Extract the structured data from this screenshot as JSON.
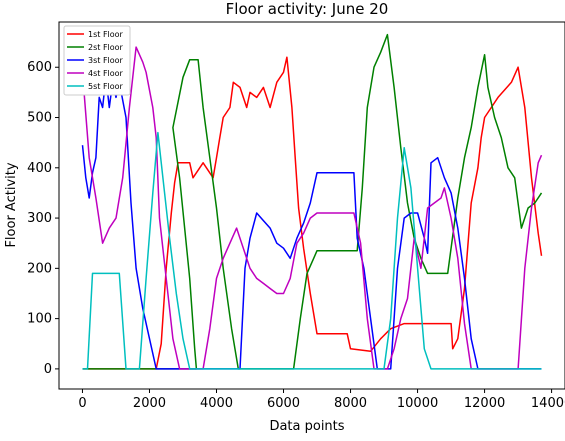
{
  "chart_data": {
    "type": "line",
    "title": "Floor activity: June 20",
    "xlabel": "Data points",
    "ylabel": "Floor Activity",
    "xlim": [
      -700,
      14400
    ],
    "ylim": [
      -40,
      690
    ],
    "xticks": [
      0,
      2000,
      4000,
      6000,
      8000,
      10000,
      12000,
      14000
    ],
    "yticks": [
      0,
      100,
      200,
      300,
      400,
      500,
      600
    ],
    "grid": false,
    "legend_position": "top-left",
    "series": [
      {
        "name": "1st Floor",
        "color": "#ff0000",
        "points": [
          [
            0,
            0
          ],
          [
            2200,
            0
          ],
          [
            2350,
            50
          ],
          [
            2500,
            200
          ],
          [
            2650,
            310
          ],
          [
            2750,
            370
          ],
          [
            2850,
            410
          ],
          [
            3200,
            410
          ],
          [
            3300,
            380
          ],
          [
            3600,
            410
          ],
          [
            3900,
            380
          ],
          [
            4000,
            420
          ],
          [
            4100,
            460
          ],
          [
            4200,
            500
          ],
          [
            4400,
            520
          ],
          [
            4500,
            570
          ],
          [
            4700,
            560
          ],
          [
            4900,
            520
          ],
          [
            5000,
            550
          ],
          [
            5200,
            540
          ],
          [
            5400,
            560
          ],
          [
            5600,
            520
          ],
          [
            5800,
            570
          ],
          [
            6000,
            590
          ],
          [
            6100,
            620
          ],
          [
            6250,
            520
          ],
          [
            6350,
            420
          ],
          [
            6450,
            320
          ],
          [
            6600,
            240
          ],
          [
            6800,
            150
          ],
          [
            7000,
            70
          ],
          [
            7900,
            70
          ],
          [
            8000,
            40
          ],
          [
            8600,
            35
          ],
          [
            8900,
            60
          ],
          [
            9200,
            80
          ],
          [
            9600,
            90
          ],
          [
            10000,
            90
          ],
          [
            10400,
            90
          ],
          [
            11000,
            90
          ],
          [
            11050,
            40
          ],
          [
            11200,
            60
          ],
          [
            11400,
            160
          ],
          [
            11600,
            330
          ],
          [
            11800,
            400
          ],
          [
            11900,
            460
          ],
          [
            12000,
            500
          ],
          [
            12200,
            520
          ],
          [
            12400,
            540
          ],
          [
            12800,
            570
          ],
          [
            13000,
            600
          ],
          [
            13200,
            520
          ],
          [
            13400,
            380
          ],
          [
            13600,
            270
          ],
          [
            13700,
            225
          ]
        ]
      },
      {
        "name": "2st Floor",
        "color": "#008000",
        "points": [
          [
            0,
            0
          ],
          [
            3300,
            0
          ],
          [
            3200,
            0
          ],
          [
            3400,
            0
          ],
          [
            3350,
            40
          ],
          [
            3200,
            180
          ],
          [
            2900,
            380
          ],
          [
            2700,
            480
          ],
          [
            3000,
            580
          ],
          [
            3200,
            615
          ],
          [
            3450,
            615
          ],
          [
            3600,
            520
          ],
          [
            3800,
            420
          ],
          [
            4000,
            320
          ],
          [
            4200,
            200
          ],
          [
            4450,
            80
          ],
          [
            4650,
            0
          ],
          [
            6300,
            0
          ],
          [
            6500,
            100
          ],
          [
            6700,
            190
          ],
          [
            6900,
            220
          ],
          [
            7000,
            235
          ],
          [
            8200,
            235
          ],
          [
            8350,
            360
          ],
          [
            8500,
            520
          ],
          [
            8700,
            600
          ],
          [
            8900,
            630
          ],
          [
            9100,
            665
          ],
          [
            9300,
            560
          ],
          [
            9500,
            440
          ],
          [
            9700,
            330
          ],
          [
            9900,
            260
          ],
          [
            10100,
            220
          ],
          [
            10300,
            190
          ],
          [
            10900,
            190
          ],
          [
            11200,
            340
          ],
          [
            11400,
            420
          ],
          [
            11600,
            480
          ],
          [
            11800,
            560
          ],
          [
            12000,
            625
          ],
          [
            12100,
            560
          ],
          [
            12300,
            500
          ],
          [
            12500,
            460
          ],
          [
            12700,
            400
          ],
          [
            12900,
            380
          ],
          [
            13100,
            280
          ],
          [
            13300,
            320
          ],
          [
            13500,
            330
          ],
          [
            13700,
            350
          ]
        ]
      },
      {
        "name": "3st Floor",
        "color": "#0000ff",
        "points": [
          [
            0,
            445
          ],
          [
            100,
            380
          ],
          [
            200,
            340
          ],
          [
            300,
            390
          ],
          [
            400,
            420
          ],
          [
            500,
            540
          ],
          [
            600,
            520
          ],
          [
            700,
            580
          ],
          [
            800,
            520
          ],
          [
            900,
            570
          ],
          [
            1000,
            540
          ],
          [
            1100,
            570
          ],
          [
            1300,
            500
          ],
          [
            1450,
            330
          ],
          [
            1600,
            200
          ],
          [
            1800,
            120
          ],
          [
            2000,
            60
          ],
          [
            2200,
            0
          ],
          [
            4700,
            0
          ],
          [
            4850,
            200
          ],
          [
            5000,
            260
          ],
          [
            5200,
            310
          ],
          [
            5400,
            295
          ],
          [
            5600,
            280
          ],
          [
            5800,
            250
          ],
          [
            6000,
            240
          ],
          [
            6200,
            220
          ],
          [
            6400,
            260
          ],
          [
            6600,
            290
          ],
          [
            6800,
            330
          ],
          [
            7000,
            390
          ],
          [
            8100,
            390
          ],
          [
            8200,
            260
          ],
          [
            8400,
            200
          ],
          [
            8600,
            100
          ],
          [
            8800,
            0
          ],
          [
            9200,
            0
          ],
          [
            9400,
            200
          ],
          [
            9600,
            300
          ],
          [
            9800,
            310
          ],
          [
            10000,
            310
          ],
          [
            10200,
            260
          ],
          [
            10300,
            230
          ],
          [
            10400,
            410
          ],
          [
            10600,
            420
          ],
          [
            10800,
            380
          ],
          [
            11000,
            350
          ],
          [
            11200,
            280
          ],
          [
            11400,
            180
          ],
          [
            11600,
            60
          ],
          [
            11800,
            0
          ],
          [
            13700,
            0
          ]
        ]
      },
      {
        "name": "4st Floor",
        "color": "#bf00bf",
        "points": [
          [
            0,
            590
          ],
          [
            200,
            420
          ],
          [
            400,
            340
          ],
          [
            600,
            250
          ],
          [
            800,
            280
          ],
          [
            1000,
            300
          ],
          [
            1200,
            380
          ],
          [
            1400,
            520
          ],
          [
            1600,
            640
          ],
          [
            1800,
            610
          ],
          [
            1900,
            590
          ],
          [
            2100,
            520
          ],
          [
            2200,
            460
          ],
          [
            2300,
            300
          ],
          [
            2500,
            180
          ],
          [
            2700,
            60
          ],
          [
            2900,
            0
          ],
          [
            3600,
            0
          ],
          [
            3800,
            80
          ],
          [
            4000,
            180
          ],
          [
            4200,
            220
          ],
          [
            4400,
            250
          ],
          [
            4600,
            280
          ],
          [
            4800,
            240
          ],
          [
            5000,
            200
          ],
          [
            5200,
            180
          ],
          [
            5400,
            170
          ],
          [
            5600,
            160
          ],
          [
            5800,
            150
          ],
          [
            6000,
            150
          ],
          [
            6200,
            180
          ],
          [
            6400,
            250
          ],
          [
            6600,
            270
          ],
          [
            6800,
            300
          ],
          [
            7000,
            310
          ],
          [
            8100,
            310
          ],
          [
            8300,
            250
          ],
          [
            8500,
            100
          ],
          [
            8700,
            0
          ],
          [
            9100,
            0
          ],
          [
            9300,
            40
          ],
          [
            9500,
            100
          ],
          [
            9700,
            140
          ],
          [
            9900,
            260
          ],
          [
            10100,
            200
          ],
          [
            10300,
            320
          ],
          [
            10500,
            330
          ],
          [
            10700,
            340
          ],
          [
            10800,
            360
          ],
          [
            11000,
            300
          ],
          [
            11200,
            220
          ],
          [
            11400,
            90
          ],
          [
            11600,
            0
          ],
          [
            13000,
            0
          ],
          [
            13200,
            200
          ],
          [
            13400,
            320
          ],
          [
            13600,
            410
          ],
          [
            13700,
            425
          ]
        ]
      },
      {
        "name": "5st Floor",
        "color": "#00bfbf",
        "points": [
          [
            0,
            0
          ],
          [
            150,
            0
          ],
          [
            300,
            190
          ],
          [
            1100,
            190
          ],
          [
            1300,
            0
          ],
          [
            1700,
            0
          ],
          [
            1900,
            180
          ],
          [
            2100,
            350
          ],
          [
            2250,
            470
          ],
          [
            2400,
            380
          ],
          [
            2600,
            260
          ],
          [
            2800,
            150
          ],
          [
            3000,
            60
          ],
          [
            3200,
            0
          ],
          [
            9000,
            0
          ],
          [
            9200,
            100
          ],
          [
            9400,
            300
          ],
          [
            9600,
            440
          ],
          [
            9800,
            360
          ],
          [
            10000,
            200
          ],
          [
            10200,
            40
          ],
          [
            10400,
            0
          ],
          [
            13700,
            0
          ]
        ]
      }
    ]
  }
}
